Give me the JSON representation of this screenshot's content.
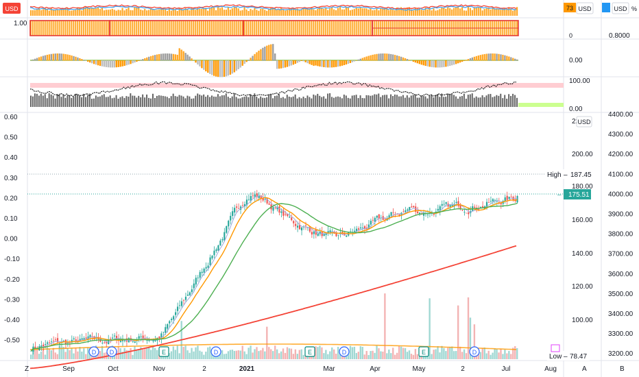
{
  "currency": "USD",
  "top_badge": {
    "value": "73",
    "pct": "%"
  },
  "pane1": {
    "left_label": "1.00",
    "right_ticks": [
      "0",
      "0.8000"
    ]
  },
  "pane2": {
    "right_ticks": [
      "0.00"
    ]
  },
  "pane3": {
    "right_ticks": [
      "100.00",
      "0.00"
    ]
  },
  "main": {
    "left_axis": [
      "0.60",
      "0.50",
      "0.40",
      "0.30",
      "0.20",
      "0.10",
      "0.00",
      "-0.10",
      "-0.20",
      "-0.30",
      "-0.40",
      "-0.50"
    ],
    "mid_axis": [
      "220",
      "200.00",
      "180.00",
      "160.00",
      "140.00",
      "120.00",
      "100.00"
    ],
    "right_axis": [
      "4400.00",
      "4300.00",
      "4200.00",
      "4100.00",
      "4000.00",
      "3900.00",
      "3800.00",
      "3700.00",
      "3600.00",
      "3500.00",
      "3400.00",
      "3300.00",
      "3200.00"
    ],
    "high": {
      "label": "High",
      "value": "187.45"
    },
    "last_price": "175.51",
    "low": {
      "label": "Low",
      "value": "78.47"
    }
  },
  "time_axis": [
    "Sep",
    "Oct",
    "Nov",
    "2",
    "2021",
    "Mar",
    "Apr",
    "May",
    "2",
    "Jul",
    "Aug"
  ],
  "events": [
    "D",
    "D",
    "E",
    "D",
    "E",
    "D",
    "E",
    "D"
  ],
  "corner_buttons": {
    "left": "Z",
    "mid": "A",
    "right": "B"
  },
  "colors": {
    "up": "#26a69a",
    "down": "#ef5350",
    "ma_fast": "#9fa8da",
    "ma_mid": "#ff9800",
    "ma_slow": "#4caf50",
    "ma_long": "#f44336",
    "last_price_bg": "#26a69a"
  }
}
